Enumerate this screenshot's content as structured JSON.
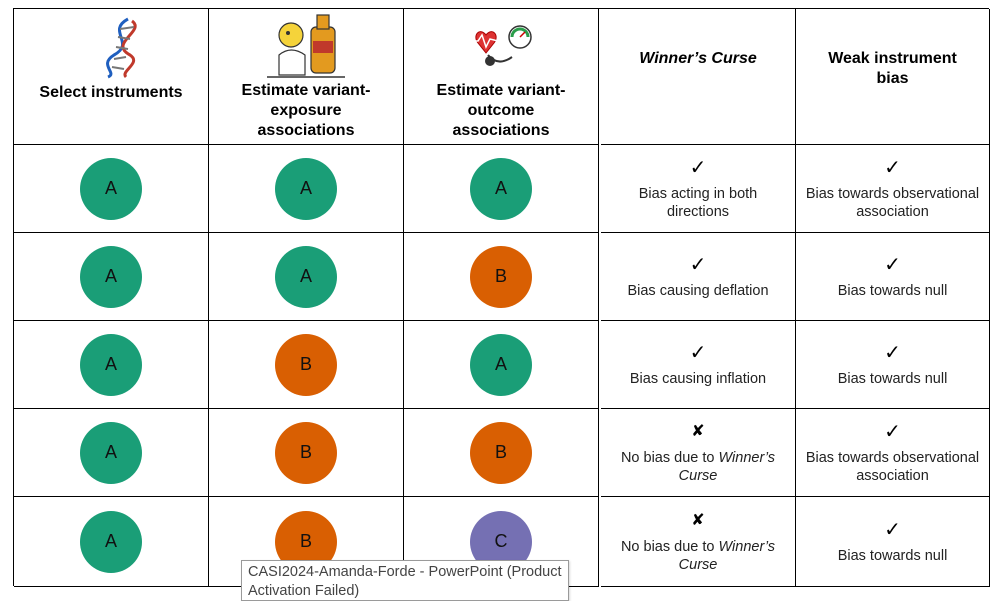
{
  "headers": {
    "select": "Select instruments",
    "exposure": "Estimate variant-exposure associations",
    "outcome": "Estimate variant-outcome associations",
    "winners": "Winner’s Curse",
    "weak": "Weak instrument bias"
  },
  "header_icons": [
    "dna-icon",
    "beer-drinking-cartoon-icon",
    "blood-pressure-heart-icon"
  ],
  "colors": {
    "A": "#1a9e77",
    "B": "#d95f02",
    "C": "#7570b3"
  },
  "marks": {
    "check": "✓",
    "cross": "✘"
  },
  "rows": [
    {
      "select": "A",
      "exposure": "A",
      "outcome": "A",
      "winners_mark": "✓",
      "winners_text": "Bias acting in both directions",
      "weak_mark": "✓",
      "weak_text": "Bias towards observational association"
    },
    {
      "select": "A",
      "exposure": "A",
      "outcome": "B",
      "winners_mark": "✓",
      "winners_text": "Bias causing deflation",
      "weak_mark": "✓",
      "weak_text": "Bias towards null"
    },
    {
      "select": "A",
      "exposure": "B",
      "outcome": "A",
      "winners_mark": "✓",
      "winners_text": "Bias causing inflation",
      "weak_mark": "✓",
      "weak_text": "Bias towards null"
    },
    {
      "select": "A",
      "exposure": "B",
      "outcome": "B",
      "winners_mark": "✘",
      "winners_text_prefix": "No bias due to ",
      "winners_text_italic": "Winner’s Curse",
      "weak_mark": "✓",
      "weak_text": "Bias towards observational association"
    },
    {
      "select": "A",
      "exposure": "B",
      "outcome": "C",
      "winners_mark": "✘",
      "winners_text_prefix": "No bias due to ",
      "winners_text_italic": "Winner’s Curse",
      "weak_mark": "✓",
      "weak_text": "Bias towards null"
    }
  ],
  "tooltip": "CASI2024-Amanda-Forde - PowerPoint (Product Activation Failed)"
}
